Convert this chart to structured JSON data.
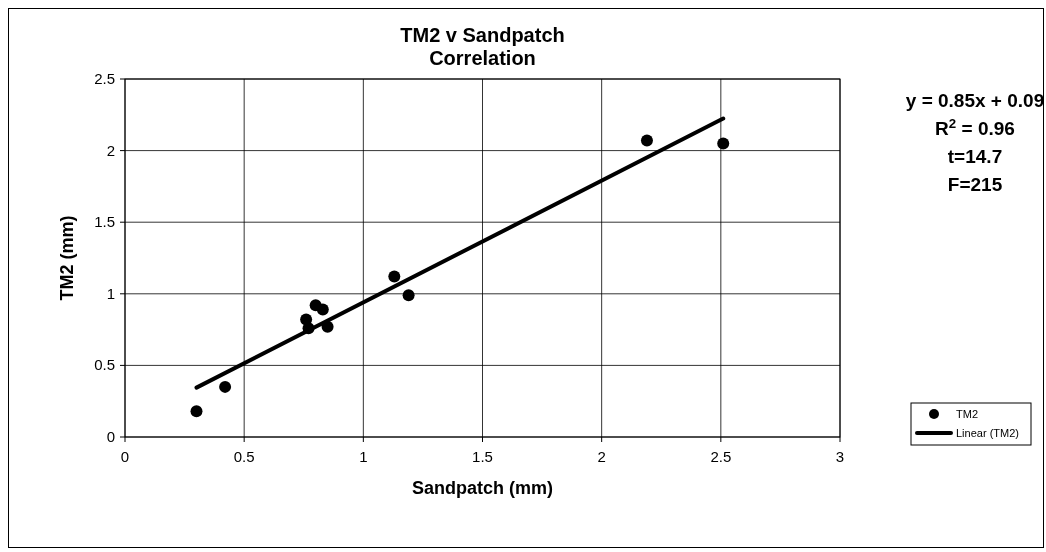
{
  "chart_data": {
    "type": "scatter",
    "title": "TM2 v Sandpatch\nCorrelation",
    "xlabel": "Sandpatch (mm)",
    "ylabel": "TM2 (mm)",
    "xlim": [
      0,
      3
    ],
    "xticks": [
      0,
      0.5,
      1,
      1.5,
      2,
      2.5,
      3
    ],
    "ylim": [
      0,
      2.5
    ],
    "yticks": [
      0,
      0.5,
      1,
      1.5,
      2,
      2.5
    ],
    "grid": true,
    "legend": "right",
    "marker": "circle",
    "series": [
      {
        "name": "TM2",
        "color": "#000000",
        "x": [
          0.3,
          0.42,
          0.76,
          0.77,
          0.8,
          0.83,
          0.85,
          1.13,
          1.19,
          2.19,
          2.51
        ],
        "values": [
          0.18,
          0.35,
          0.82,
          0.76,
          0.92,
          0.89,
          0.77,
          1.12,
          0.99,
          2.07,
          2.05
        ]
      },
      {
        "name": "Linear (TM2)",
        "type": "line",
        "marker": "none",
        "color": "#000000",
        "x": [
          0.3,
          2.51
        ],
        "values": [
          0.345,
          2.224
        ]
      }
    ],
    "annotations": [
      "y = 0.85x + 0.09",
      "R$^{2}$ = 0.96",
      "t=14.7",
      "F=215"
    ]
  }
}
